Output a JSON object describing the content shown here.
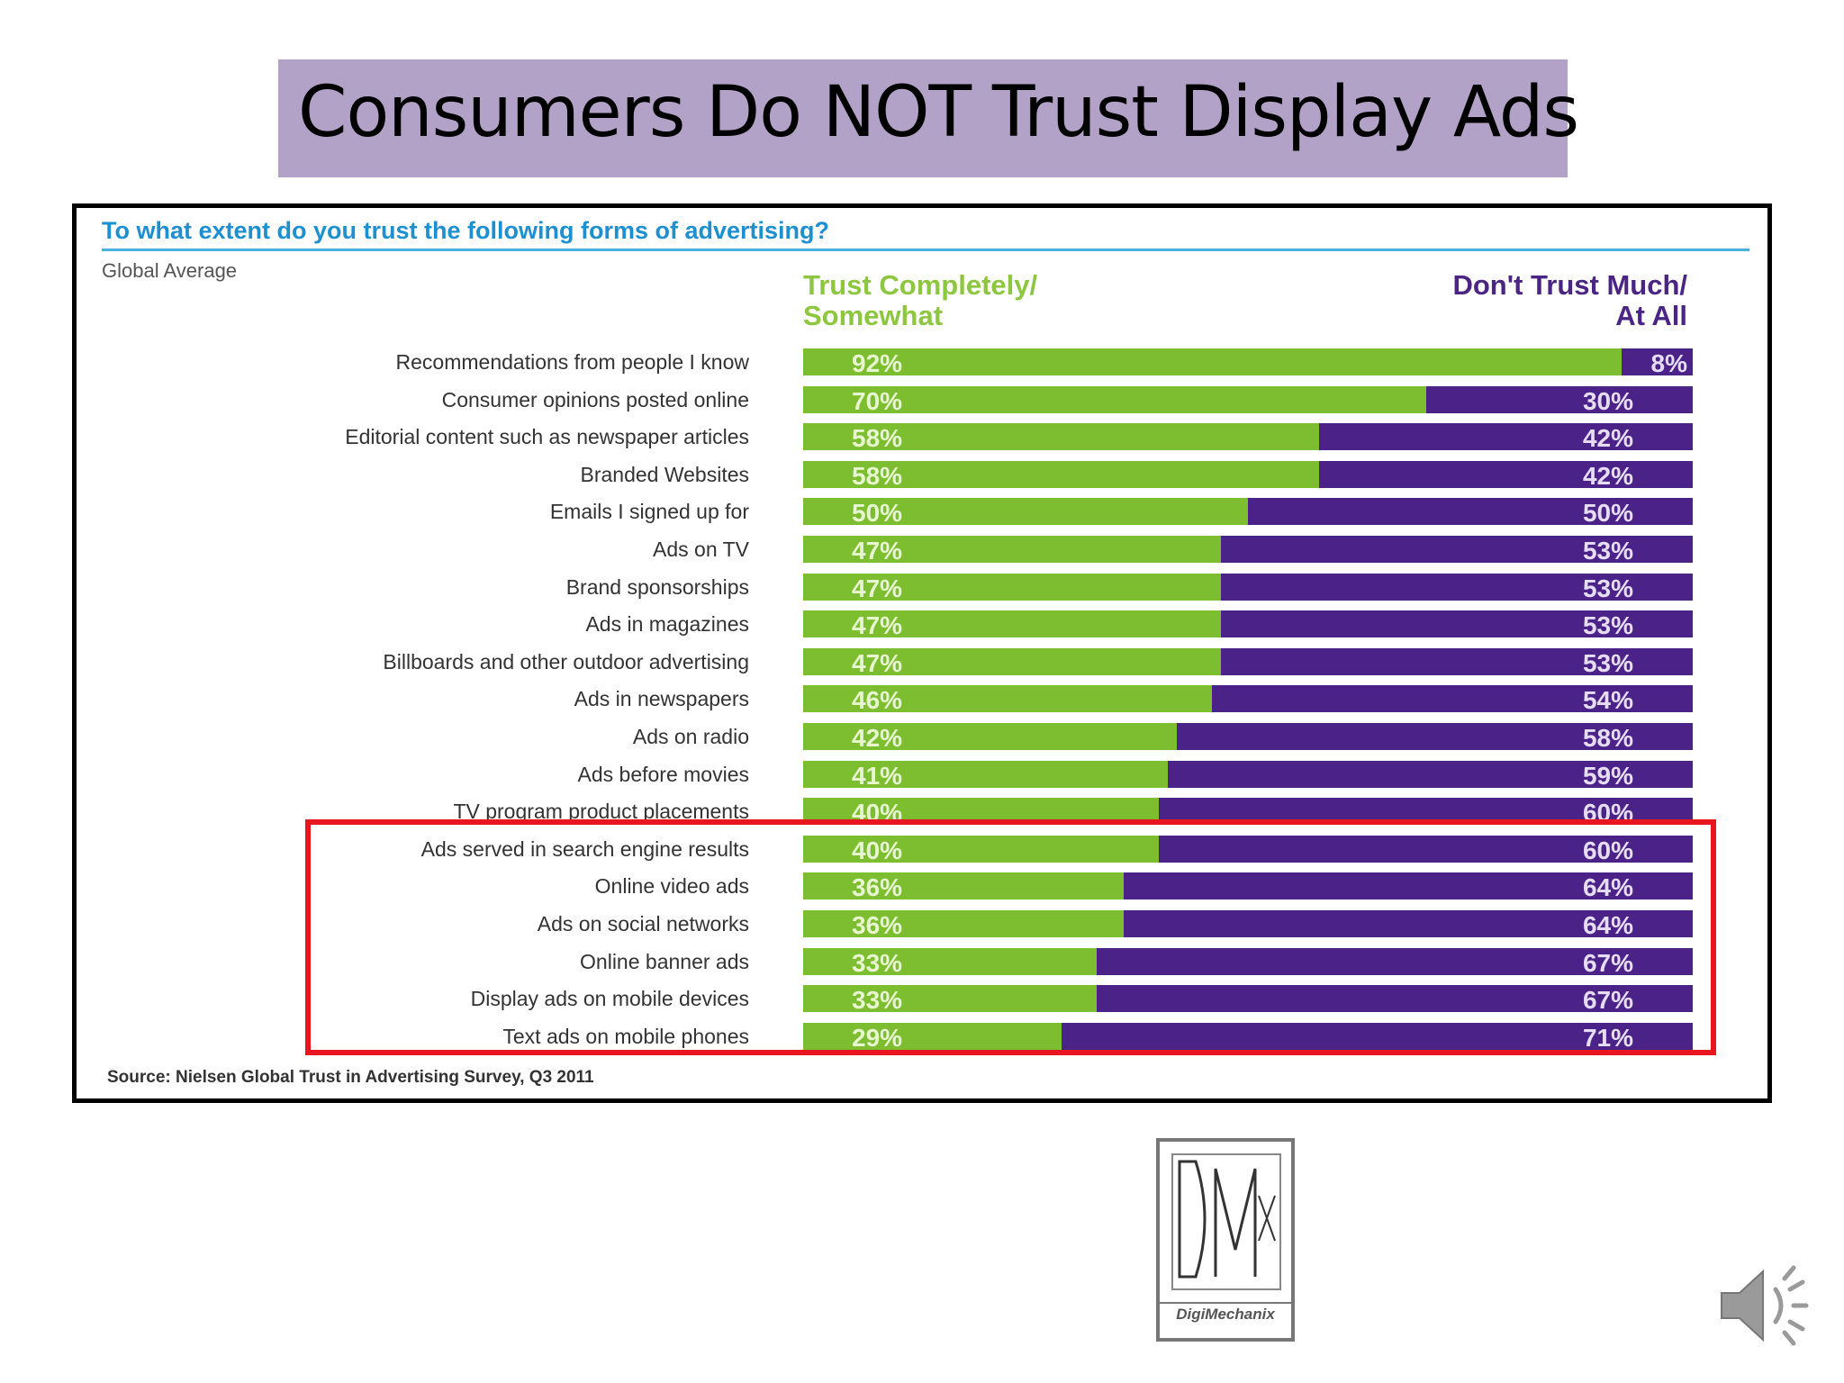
{
  "slide": {
    "title": "Consumers Do NOT Trust Display Ads"
  },
  "chart_data": {
    "type": "bar",
    "stacked": true,
    "orientation": "horizontal",
    "title": "To what extent do you trust the following forms of advertising?",
    "subtitle": "Global Average",
    "categories": [
      "Recommendations from people I know",
      "Consumer opinions posted online",
      "Editorial content such as newspaper articles",
      "Branded Websites",
      "Emails I signed up for",
      "Ads on TV",
      "Brand sponsorships",
      "Ads in magazines",
      "Billboards and other outdoor advertising",
      "Ads in newspapers",
      "Ads on radio",
      "Ads before movies",
      "TV program product placements",
      "Ads served in search engine results",
      "Online video ads",
      "Ads on social networks",
      "Online banner ads",
      "Display ads on mobile devices",
      "Text ads on mobile phones"
    ],
    "series": [
      {
        "name": "Trust Completely/ Somewhat",
        "color": "#7dbd30",
        "values": [
          92,
          70,
          58,
          58,
          50,
          47,
          47,
          47,
          47,
          46,
          42,
          41,
          40,
          40,
          36,
          36,
          33,
          33,
          29
        ]
      },
      {
        "name": "Don't Trust Much/ At All",
        "color": "#4b2388",
        "values": [
          8,
          30,
          42,
          42,
          50,
          53,
          53,
          53,
          53,
          54,
          58,
          59,
          60,
          60,
          64,
          64,
          67,
          67,
          71
        ]
      }
    ],
    "value_suffix": "%",
    "xlim": [
      0,
      100
    ],
    "highlighted_categories_from": "Ads served in search engine results",
    "source": "Source: Nielsen Global Trust in Advertising Survey, Q3 2011"
  },
  "headers": {
    "trust_line1": "Trust Completely/",
    "trust_line2": "Somewhat",
    "distrust_line1": "Don't Trust Much/",
    "distrust_line2": "At All"
  },
  "logo": {
    "mark": "DMX",
    "name": "DigiMechanix",
    "icon": "digimechanix-logo"
  },
  "audio": {
    "icon": "speaker-icon"
  }
}
